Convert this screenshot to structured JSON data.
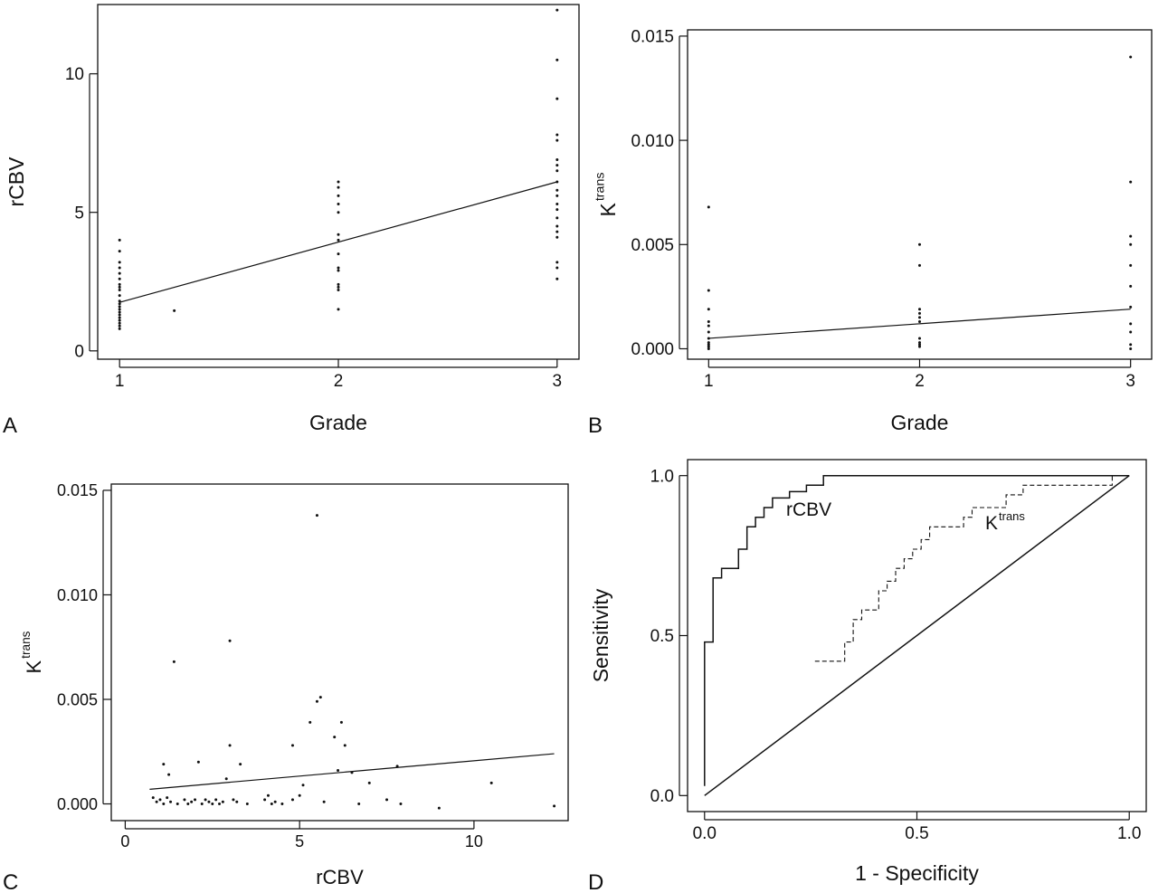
{
  "chart_data": [
    {
      "panel_label": "A",
      "type": "scatter",
      "xlabel": "Grade",
      "ylabel": "rCBV",
      "xlim": [
        0.9,
        3.1
      ],
      "ylim": [
        -0.3,
        12.5
      ],
      "xticks": [
        1,
        2,
        3
      ],
      "xtick_labels": [
        "1",
        "2",
        "3"
      ],
      "yticks": [
        0,
        5,
        10
      ],
      "ytick_labels": [
        "0",
        "5",
        "10"
      ],
      "points": [
        {
          "x": 1,
          "y": 4.0
        },
        {
          "x": 1,
          "y": 3.6
        },
        {
          "x": 1,
          "y": 3.2
        },
        {
          "x": 1,
          "y": 3.0
        },
        {
          "x": 1,
          "y": 2.8
        },
        {
          "x": 1,
          "y": 2.6
        },
        {
          "x": 1,
          "y": 2.4
        },
        {
          "x": 1,
          "y": 2.3
        },
        {
          "x": 1,
          "y": 2.2
        },
        {
          "x": 1,
          "y": 2.0
        },
        {
          "x": 1,
          "y": 1.8
        },
        {
          "x": 1,
          "y": 1.7
        },
        {
          "x": 1,
          "y": 1.6
        },
        {
          "x": 1,
          "y": 1.5
        },
        {
          "x": 1,
          "y": 1.4
        },
        {
          "x": 1,
          "y": 1.3
        },
        {
          "x": 1,
          "y": 1.2
        },
        {
          "x": 1,
          "y": 1.1
        },
        {
          "x": 1,
          "y": 1.0
        },
        {
          "x": 1,
          "y": 0.9
        },
        {
          "x": 1,
          "y": 0.8
        },
        {
          "x": 1.25,
          "y": 1.45
        },
        {
          "x": 2,
          "y": 6.1
        },
        {
          "x": 2,
          "y": 5.9
        },
        {
          "x": 2,
          "y": 5.6
        },
        {
          "x": 2,
          "y": 5.3
        },
        {
          "x": 2,
          "y": 5.0
        },
        {
          "x": 2,
          "y": 4.2
        },
        {
          "x": 2,
          "y": 4.0
        },
        {
          "x": 2,
          "y": 3.5
        },
        {
          "x": 2,
          "y": 3.0
        },
        {
          "x": 2,
          "y": 2.9
        },
        {
          "x": 2,
          "y": 2.4
        },
        {
          "x": 2,
          "y": 2.3
        },
        {
          "x": 2,
          "y": 2.2
        },
        {
          "x": 2,
          "y": 1.5
        },
        {
          "x": 3,
          "y": 12.3
        },
        {
          "x": 3,
          "y": 10.5
        },
        {
          "x": 3,
          "y": 9.1
        },
        {
          "x": 3,
          "y": 7.8
        },
        {
          "x": 3,
          "y": 7.6
        },
        {
          "x": 3,
          "y": 6.9
        },
        {
          "x": 3,
          "y": 6.7
        },
        {
          "x": 3,
          "y": 6.5
        },
        {
          "x": 3,
          "y": 6.1
        },
        {
          "x": 3,
          "y": 5.8
        },
        {
          "x": 3,
          "y": 5.6
        },
        {
          "x": 3,
          "y": 5.3
        },
        {
          "x": 3,
          "y": 5.1
        },
        {
          "x": 3,
          "y": 4.8
        },
        {
          "x": 3,
          "y": 4.5
        },
        {
          "x": 3,
          "y": 4.3
        },
        {
          "x": 3,
          "y": 4.1
        },
        {
          "x": 3,
          "y": 3.2
        },
        {
          "x": 3,
          "y": 3.0
        },
        {
          "x": 3,
          "y": 2.6
        }
      ],
      "fit_line": [
        {
          "x": 1,
          "y": 1.75
        },
        {
          "x": 3,
          "y": 6.1
        }
      ]
    },
    {
      "panel_label": "B",
      "type": "scatter",
      "xlabel": "Grade",
      "ylabel": "K",
      "ylabel_superscript": "trans",
      "xlim": [
        0.9,
        3.1
      ],
      "ylim": [
        -0.0005,
        0.0153
      ],
      "xticks": [
        1,
        2,
        3
      ],
      "xtick_labels": [
        "1",
        "2",
        "3"
      ],
      "yticks": [
        0.0,
        0.005,
        0.01,
        0.015
      ],
      "ytick_labels": [
        "0.000",
        "0.005",
        "0.010",
        "0.015"
      ],
      "points": [
        {
          "x": 1,
          "y": 0.0068
        },
        {
          "x": 1,
          "y": 0.0028
        },
        {
          "x": 1,
          "y": 0.0019
        },
        {
          "x": 1,
          "y": 0.0013
        },
        {
          "x": 1,
          "y": 0.0011
        },
        {
          "x": 1,
          "y": 0.0008
        },
        {
          "x": 1,
          "y": 0.0005
        },
        {
          "x": 1,
          "y": 0.0003
        },
        {
          "x": 1,
          "y": 0.0002
        },
        {
          "x": 1,
          "y": 0.0001
        },
        {
          "x": 1,
          "y": 0.0
        },
        {
          "x": 2,
          "y": 0.005
        },
        {
          "x": 2,
          "y": 0.004
        },
        {
          "x": 2,
          "y": 0.0019
        },
        {
          "x": 2,
          "y": 0.0017
        },
        {
          "x": 2,
          "y": 0.0015
        },
        {
          "x": 2,
          "y": 0.0013
        },
        {
          "x": 2,
          "y": 0.0005
        },
        {
          "x": 2,
          "y": 0.0003
        },
        {
          "x": 2,
          "y": 0.0002
        },
        {
          "x": 2,
          "y": 0.0001
        },
        {
          "x": 3,
          "y": 0.014
        },
        {
          "x": 3,
          "y": 0.008
        },
        {
          "x": 3,
          "y": 0.0054
        },
        {
          "x": 3,
          "y": 0.005
        },
        {
          "x": 3,
          "y": 0.004
        },
        {
          "x": 3,
          "y": 0.003
        },
        {
          "x": 3,
          "y": 0.002
        },
        {
          "x": 3,
          "y": 0.0012
        },
        {
          "x": 3,
          "y": 0.0008
        },
        {
          "x": 3,
          "y": 0.0002
        },
        {
          "x": 3,
          "y": 0.0
        }
      ],
      "fit_line": [
        {
          "x": 1,
          "y": 0.0005
        },
        {
          "x": 3,
          "y": 0.0019
        }
      ]
    },
    {
      "panel_label": "C",
      "type": "scatter",
      "xlabel": "rCBV",
      "ylabel": "K",
      "ylabel_superscript": "trans",
      "xlim": [
        -0.4,
        12.7
      ],
      "ylim": [
        -0.0008,
        0.0153
      ],
      "xticks": [
        0,
        5,
        10
      ],
      "xtick_labels": [
        "0",
        "5",
        "10"
      ],
      "yticks": [
        0.0,
        0.005,
        0.01,
        0.015
      ],
      "ytick_labels": [
        "0.000",
        "0.005",
        "0.010",
        "0.015"
      ],
      "points": [
        {
          "x": 0.8,
          "y": 0.0003
        },
        {
          "x": 0.9,
          "y": 0.0001
        },
        {
          "x": 1.0,
          "y": 0.0002
        },
        {
          "x": 1.1,
          "y": 0.0
        },
        {
          "x": 1.2,
          "y": 0.0003
        },
        {
          "x": 1.3,
          "y": 0.0001
        },
        {
          "x": 1.4,
          "y": 0.0068
        },
        {
          "x": 1.1,
          "y": 0.0019
        },
        {
          "x": 1.25,
          "y": 0.0014
        },
        {
          "x": 1.5,
          "y": 0.0
        },
        {
          "x": 1.7,
          "y": 0.0002
        },
        {
          "x": 1.8,
          "y": 0.0
        },
        {
          "x": 1.9,
          "y": 0.0001
        },
        {
          "x": 2.0,
          "y": 0.0002
        },
        {
          "x": 2.2,
          "y": 0.0
        },
        {
          "x": 2.1,
          "y": 0.002
        },
        {
          "x": 2.3,
          "y": 0.0002
        },
        {
          "x": 2.4,
          "y": 0.0001
        },
        {
          "x": 2.5,
          "y": 0.0
        },
        {
          "x": 2.6,
          "y": 0.0002
        },
        {
          "x": 2.7,
          "y": 0.0
        },
        {
          "x": 2.8,
          "y": 0.0001
        },
        {
          "x": 2.9,
          "y": 0.0012
        },
        {
          "x": 3.0,
          "y": 0.0078
        },
        {
          "x": 3.0,
          "y": 0.0028
        },
        {
          "x": 3.1,
          "y": 0.0002
        },
        {
          "x": 3.2,
          "y": 0.0001
        },
        {
          "x": 3.3,
          "y": 0.0019
        },
        {
          "x": 3.5,
          "y": 0.0
        },
        {
          "x": 4.0,
          "y": 0.0002
        },
        {
          "x": 4.1,
          "y": 0.0004
        },
        {
          "x": 4.2,
          "y": 0.0
        },
        {
          "x": 4.3,
          "y": 0.0001
        },
        {
          "x": 4.5,
          "y": 0.0
        },
        {
          "x": 4.8,
          "y": 0.0002
        },
        {
          "x": 4.8,
          "y": 0.0028
        },
        {
          "x": 5.0,
          "y": 0.0004
        },
        {
          "x": 5.1,
          "y": 0.0009
        },
        {
          "x": 5.3,
          "y": 0.0039
        },
        {
          "x": 5.5,
          "y": 0.0049
        },
        {
          "x": 5.6,
          "y": 0.0051
        },
        {
          "x": 5.7,
          "y": 0.0001
        },
        {
          "x": 5.5,
          "y": 0.0138
        },
        {
          "x": 6.0,
          "y": 0.0032
        },
        {
          "x": 6.2,
          "y": 0.0039
        },
        {
          "x": 6.1,
          "y": 0.0016
        },
        {
          "x": 6.3,
          "y": 0.0028
        },
        {
          "x": 6.5,
          "y": 0.0015
        },
        {
          "x": 6.7,
          "y": 0.0
        },
        {
          "x": 7.0,
          "y": 0.001
        },
        {
          "x": 7.5,
          "y": 0.0002
        },
        {
          "x": 7.8,
          "y": 0.0018
        },
        {
          "x": 7.9,
          "y": 0.0
        },
        {
          "x": 9.0,
          "y": -0.0002
        },
        {
          "x": 10.5,
          "y": 0.001
        },
        {
          "x": 12.3,
          "y": -0.0001
        }
      ],
      "fit_line": [
        {
          "x": 0.7,
          "y": 0.0007
        },
        {
          "x": 12.3,
          "y": 0.0024
        }
      ]
    },
    {
      "panel_label": "D",
      "type": "line",
      "xlabel": "1 - Specificity",
      "ylabel": "Sensitivity",
      "xlim": [
        -0.04,
        1.04
      ],
      "ylim": [
        -0.05,
        1.05
      ],
      "xticks": [
        0.0,
        0.5,
        1.0
      ],
      "xtick_labels": [
        "0.0",
        "0.5",
        "1.0"
      ],
      "yticks": [
        0.0,
        0.5,
        1.0
      ],
      "ytick_labels": [
        "0.0",
        "0.5",
        "1.0"
      ],
      "series": [
        {
          "name": "rCBV",
          "style": "solid",
          "points": [
            [
              0.0,
              0.03
            ],
            [
              0.0,
              0.48
            ],
            [
              0.02,
              0.48
            ],
            [
              0.02,
              0.68
            ],
            [
              0.04,
              0.68
            ],
            [
              0.04,
              0.71
            ],
            [
              0.08,
              0.71
            ],
            [
              0.08,
              0.77
            ],
            [
              0.1,
              0.77
            ],
            [
              0.1,
              0.84
            ],
            [
              0.12,
              0.84
            ],
            [
              0.12,
              0.87
            ],
            [
              0.14,
              0.87
            ],
            [
              0.14,
              0.9
            ],
            [
              0.16,
              0.9
            ],
            [
              0.16,
              0.93
            ],
            [
              0.2,
              0.93
            ],
            [
              0.2,
              0.95
            ],
            [
              0.24,
              0.95
            ],
            [
              0.24,
              0.97
            ],
            [
              0.28,
              0.97
            ],
            [
              0.28,
              1.0
            ],
            [
              1.0,
              1.0
            ]
          ]
        },
        {
          "name": "K",
          "name_superscript": "trans",
          "style": "dashed",
          "points": [
            [
              0.26,
              0.42
            ],
            [
              0.33,
              0.42
            ],
            [
              0.33,
              0.48
            ],
            [
              0.35,
              0.48
            ],
            [
              0.35,
              0.55
            ],
            [
              0.37,
              0.55
            ],
            [
              0.37,
              0.58
            ],
            [
              0.41,
              0.58
            ],
            [
              0.41,
              0.64
            ],
            [
              0.43,
              0.64
            ],
            [
              0.43,
              0.67
            ],
            [
              0.45,
              0.67
            ],
            [
              0.45,
              0.71
            ],
            [
              0.47,
              0.71
            ],
            [
              0.47,
              0.74
            ],
            [
              0.49,
              0.74
            ],
            [
              0.49,
              0.77
            ],
            [
              0.51,
              0.77
            ],
            [
              0.51,
              0.8
            ],
            [
              0.53,
              0.8
            ],
            [
              0.53,
              0.84
            ],
            [
              0.61,
              0.84
            ],
            [
              0.61,
              0.87
            ],
            [
              0.63,
              0.87
            ],
            [
              0.63,
              0.9
            ],
            [
              0.71,
              0.9
            ],
            [
              0.71,
              0.94
            ],
            [
              0.75,
              0.94
            ],
            [
              0.75,
              0.97
            ],
            [
              0.96,
              0.97
            ],
            [
              0.96,
              1.0
            ],
            [
              1.0,
              1.0
            ]
          ]
        },
        {
          "name": "",
          "style": "diagonal",
          "points": [
            [
              0.0,
              0.0
            ],
            [
              1.0,
              1.0
            ]
          ]
        }
      ]
    }
  ]
}
